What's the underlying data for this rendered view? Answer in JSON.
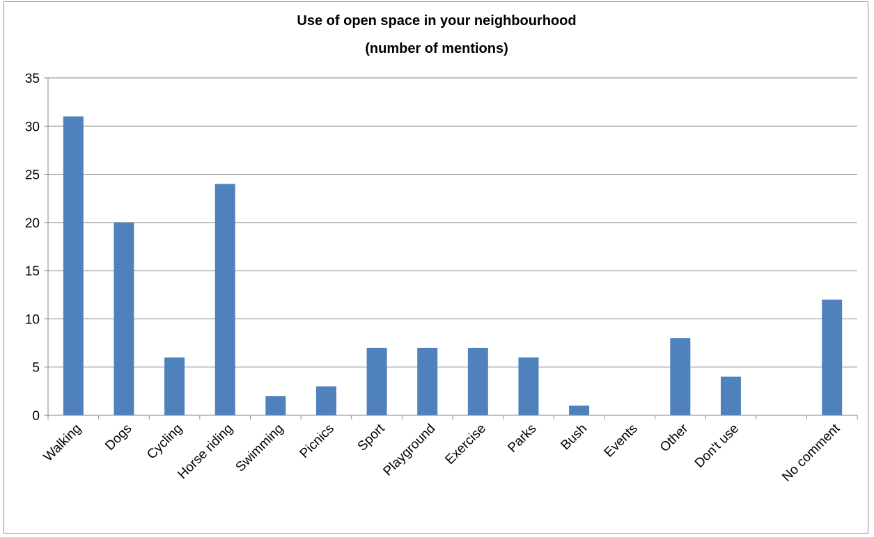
{
  "chart_data": {
    "type": "bar",
    "title_lines": [
      "Use of open space in your neighbourhood",
      "(number of mentions)"
    ],
    "categories": [
      "Walking",
      "Dogs",
      "Cycling",
      "Horse riding",
      "Swimming",
      "Picnics",
      "Sport",
      "Playground",
      "Exercise",
      "Parks",
      "Bush",
      "Events",
      "Other",
      "Don't use",
      "",
      "No comment"
    ],
    "values": [
      31,
      20,
      6,
      24,
      2,
      3,
      7,
      7,
      7,
      6,
      1,
      0,
      8,
      4,
      0,
      12
    ],
    "ylim": [
      0,
      35
    ],
    "yticks": [
      0,
      5,
      10,
      15,
      20,
      25,
      30,
      35
    ],
    "xlabel": "",
    "ylabel": "",
    "grid": true,
    "legend": "none",
    "bar_color": "#4f81bd",
    "grid_color": "#868686"
  }
}
